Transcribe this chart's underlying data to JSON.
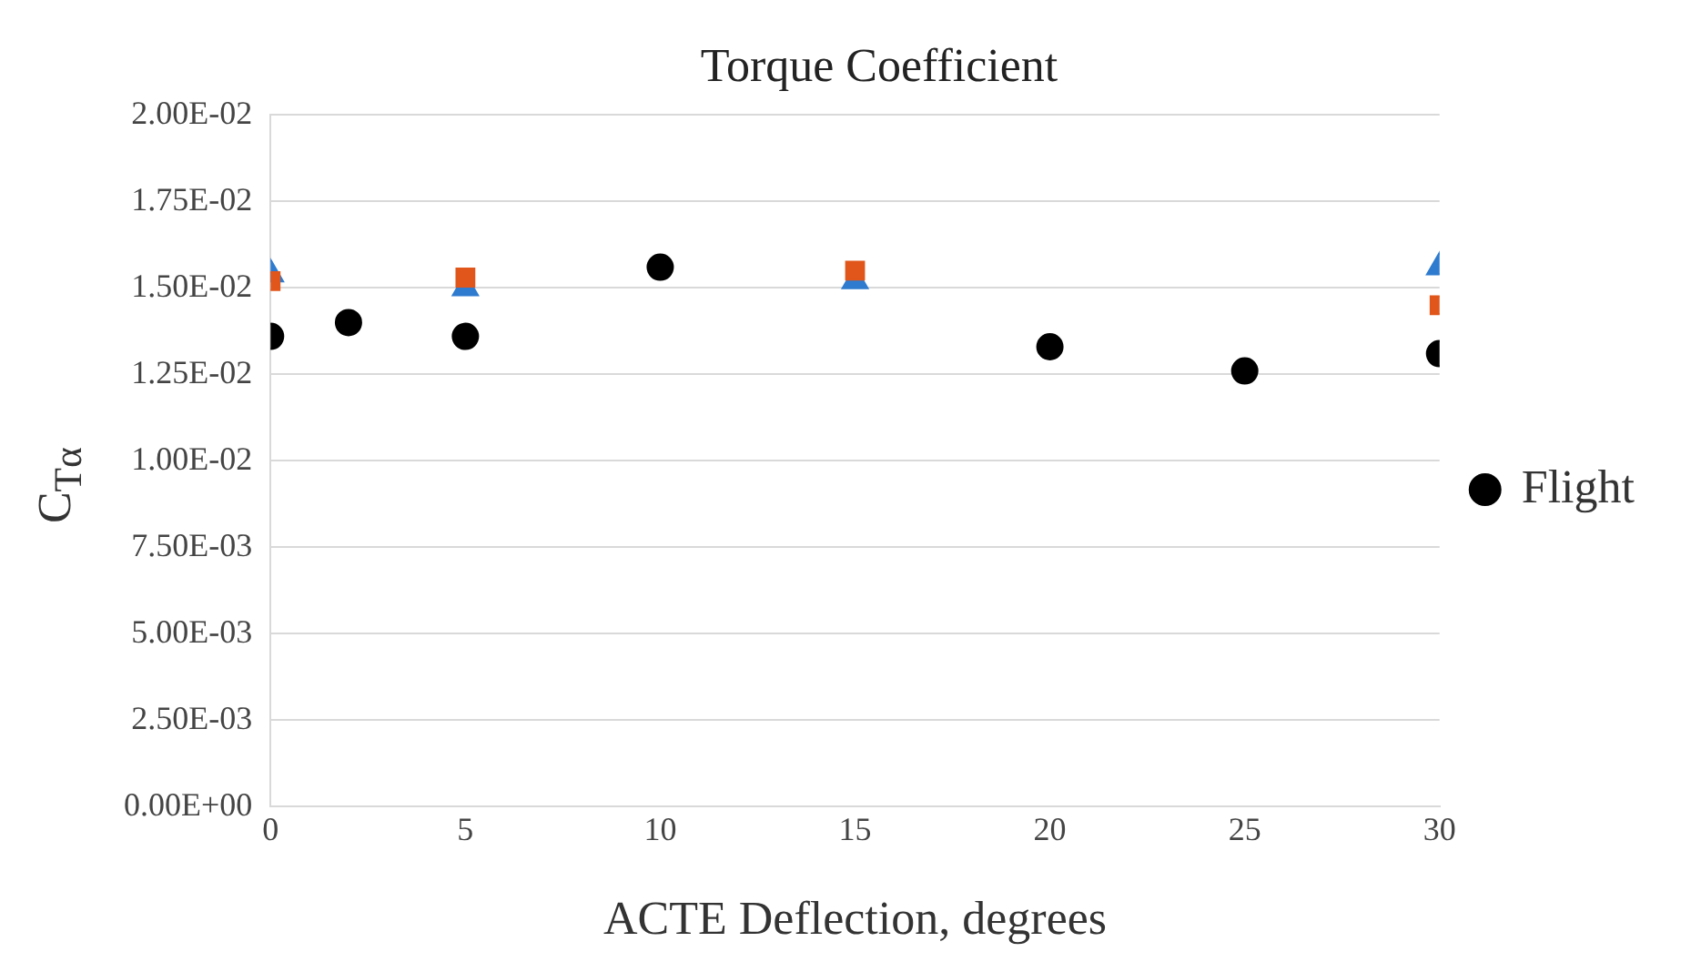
{
  "chart_data": {
    "type": "scatter",
    "title": "Torque Coefficient",
    "xlabel": "ACTE Deflection, degrees",
    "ylabel": "C$_{Tα}$",
    "series": [
      {
        "name": "Flight",
        "color": "#000000",
        "marker": "circle",
        "x": [
          0,
          2,
          5,
          10,
          20,
          25,
          30
        ],
        "values": [
          0.0136,
          0.014,
          0.0136,
          0.0156,
          0.0133,
          0.0126,
          0.0131
        ]
      },
      {
        "color": "#e0561b",
        "marker": "square",
        "x": [
          0,
          5,
          15,
          30
        ],
        "values": [
          0.0152,
          0.0153,
          0.0155,
          0.0145
        ]
      },
      {
        "color": "#2e7bcf",
        "marker": "triangle",
        "x": [
          0,
          5,
          15,
          30
        ],
        "values": [
          0.0154,
          0.015,
          0.0152,
          0.0156
        ]
      }
    ],
    "xlim": [
      0,
      30
    ],
    "xticks": [
      0,
      5,
      10,
      15,
      20,
      25,
      30
    ],
    "ylim": [
      0,
      0.02
    ],
    "yticks": [
      {
        "value": 0,
        "label": "0.00E+00"
      },
      {
        "value": 0.0025,
        "label": "2.50E-03"
      },
      {
        "value": 0.005,
        "label": "5.00E-03"
      },
      {
        "value": 0.0075,
        "label": "7.50E-03"
      },
      {
        "value": 0.01,
        "label": "1.00E-02"
      },
      {
        "value": 0.0125,
        "label": "1.25E-02"
      },
      {
        "value": 0.015,
        "label": "1.50E-02"
      },
      {
        "value": 0.0175,
        "label": "1.75E-02"
      },
      {
        "value": 0.02,
        "label": "2.00E-02"
      }
    ],
    "grid": "y",
    "legend": "right"
  }
}
